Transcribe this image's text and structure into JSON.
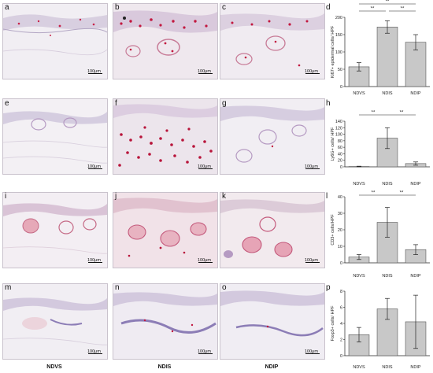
{
  "panel_letters": {
    "a": "a",
    "b": "b",
    "c": "c",
    "d": "d",
    "e": "e",
    "f": "f",
    "g": "g",
    "h": "h",
    "i": "i",
    "j": "j",
    "k": "k",
    "l": "l",
    "m": "m",
    "n": "n",
    "o": "o",
    "p": "p"
  },
  "scale_label": "100μm",
  "columns": [
    "NDVS",
    "NDIS",
    "NDIP"
  ],
  "chart_data": [
    {
      "type": "bar",
      "panel": "d",
      "categories": [
        "NDVS",
        "NDIS",
        "NDIP"
      ],
      "values": [
        57,
        172,
        128
      ],
      "errors": [
        12,
        18,
        22
      ],
      "ylabel": "Ki67+ epidermal cells/ HPF",
      "ylim": [
        0,
        200
      ],
      "yticks": [
        0,
        50,
        100,
        150,
        200
      ],
      "significance": [
        {
          "label": "**",
          "from": 0,
          "to": 1
        },
        {
          "label": "**",
          "from": 0,
          "to": 2
        },
        {
          "label": "**",
          "from": 1,
          "to": 2
        }
      ],
      "bar_color": "#c8c8c8"
    },
    {
      "type": "bar",
      "panel": "h",
      "categories": [
        "NDVS",
        "NDIS",
        "NDIP"
      ],
      "values": [
        1,
        88,
        10
      ],
      "errors": [
        1,
        32,
        5
      ],
      "ylabel": "Ly6G+ cells/ HPF",
      "ylim": [
        0,
        140
      ],
      "yticks": [
        0,
        20,
        40,
        60,
        80,
        100,
        120,
        140
      ],
      "significance": [
        {
          "label": "**",
          "from": 0,
          "to": 1
        },
        {
          "label": "**",
          "from": 1,
          "to": 2
        }
      ],
      "bar_color": "#c8c8c8"
    },
    {
      "type": "bar",
      "panel": "l",
      "categories": [
        "NDVS",
        "NDIS",
        "NDIP"
      ],
      "values": [
        3.5,
        24.5,
        8
      ],
      "errors": [
        1.5,
        9,
        3
      ],
      "ylabel": "CD3+ cells/HPF",
      "ylim": [
        0,
        40
      ],
      "yticks": [
        0,
        10,
        20,
        30,
        40
      ],
      "significance": [
        {
          "label": "**",
          "from": 0,
          "to": 1
        },
        {
          "label": "**",
          "from": 1,
          "to": 2
        }
      ],
      "bar_color": "#c8c8c8"
    },
    {
      "type": "bar",
      "panel": "p",
      "categories": [
        "NDVS",
        "NDIS",
        "NDIP"
      ],
      "values": [
        2.6,
        5.8,
        4.2
      ],
      "errors": [
        0.9,
        1.3,
        3.3
      ],
      "ylabel": "Foxp3+ cells/ HPF",
      "ylim": [
        0,
        8
      ],
      "yticks": [
        0,
        2,
        4,
        6,
        8
      ],
      "significance": [],
      "bar_color": "#c8c8c8"
    }
  ]
}
